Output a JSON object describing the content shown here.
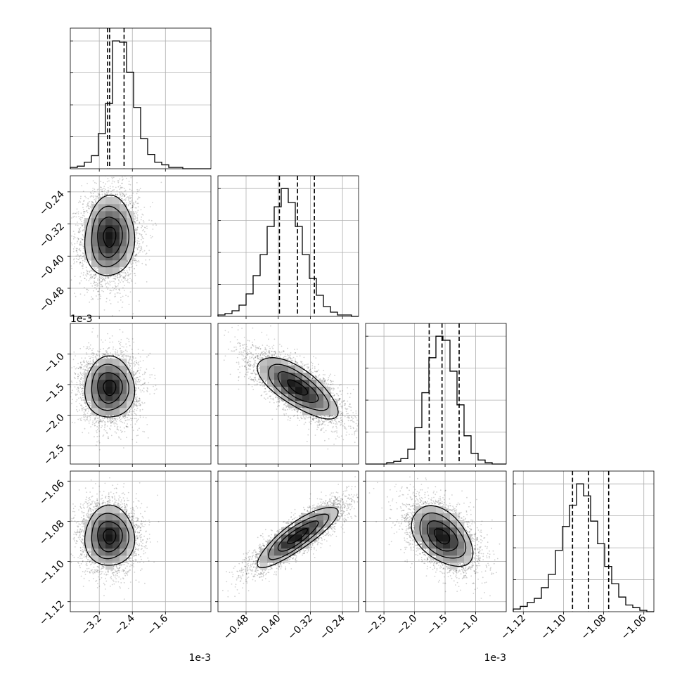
{
  "chart_data": {
    "type": "corner",
    "ndim": 4,
    "grid": true,
    "offset_label": "1e-3",
    "colors": {
      "ink": "#000000",
      "grid": "#b0b0b0",
      "density_low": "#ffffff",
      "density_high": "#000000"
    },
    "dims": [
      {
        "center": -2.95,
        "sigma": 0.3,
        "lo": -3.0,
        "hi": -2.6,
        "range": [
          -3.9,
          -0.5
        ],
        "ticks": [
          -3.2,
          -2.4,
          -1.6
        ],
        "tick_labels": [
          "−3.2",
          "−2.4",
          "−1.6"
        ],
        "offset": "1e-3",
        "hist_counts": [
          1,
          2,
          5,
          10,
          27,
          50,
          98,
          97,
          74,
          47,
          23,
          11,
          5,
          3,
          1,
          1,
          0,
          0,
          0,
          0
        ]
      },
      {
        "center": -0.352,
        "sigma": 0.05,
        "lo": -0.397,
        "hi": -0.31,
        "range": [
          -0.55,
          -0.2
        ],
        "ticks": [
          -0.48,
          -0.4,
          -0.32,
          -0.24
        ],
        "tick_labels": [
          "−0.48",
          "−0.40",
          "−0.32",
          "−0.24"
        ],
        "offset": "",
        "hist_counts": [
          1,
          2,
          4,
          8,
          16,
          29,
          44,
          64,
          78,
          91,
          81,
          64,
          44,
          27,
          15,
          7,
          3,
          1,
          1,
          0
        ]
      },
      {
        "center": -1.55,
        "sigma": 0.25,
        "lo": -1.76,
        "hi": -1.27,
        "range": [
          -2.8,
          -0.5
        ],
        "ticks": [
          -2.5,
          -2.0,
          -1.5,
          -1.0
        ],
        "tick_labels": [
          "−2.5",
          "−2.0",
          "−1.5",
          "−1.0"
        ],
        "offset": "1e-3",
        "hist_counts": [
          0,
          0,
          0,
          1,
          2,
          4,
          11,
          27,
          53,
          79,
          95,
          92,
          69,
          44,
          21,
          8,
          3,
          1,
          0,
          0
        ]
      },
      {
        "center": -1.0875,
        "sigma": 0.0075,
        "lo": -1.0955,
        "hi": -1.0775,
        "range": [
          -1.125,
          -1.055
        ],
        "ticks": [
          -1.12,
          -1.1,
          -1.08,
          -1.06
        ],
        "tick_labels": [
          "−1.12",
          "−1.10",
          "−1.08",
          "−1.06"
        ],
        "offset": "",
        "hist_counts": [
          2,
          4,
          7,
          10,
          18,
          28,
          46,
          64,
          80,
          96,
          87,
          68,
          51,
          34,
          21,
          11,
          5,
          3,
          1,
          0
        ]
      }
    ],
    "correlations": [
      {
        "row": 1,
        "col": 0,
        "r": 0.05
      },
      {
        "row": 2,
        "col": 0,
        "r": 0.0
      },
      {
        "row": 2,
        "col": 1,
        "r": -0.72
      },
      {
        "row": 3,
        "col": 0,
        "r": 0.0
      },
      {
        "row": 3,
        "col": 1,
        "r": 0.85
      },
      {
        "row": 3,
        "col": 2,
        "r": -0.45
      }
    ],
    "contour_levels": [
      0.5,
      1.0,
      1.5,
      2.0
    ],
    "scatter_points": 4000
  }
}
